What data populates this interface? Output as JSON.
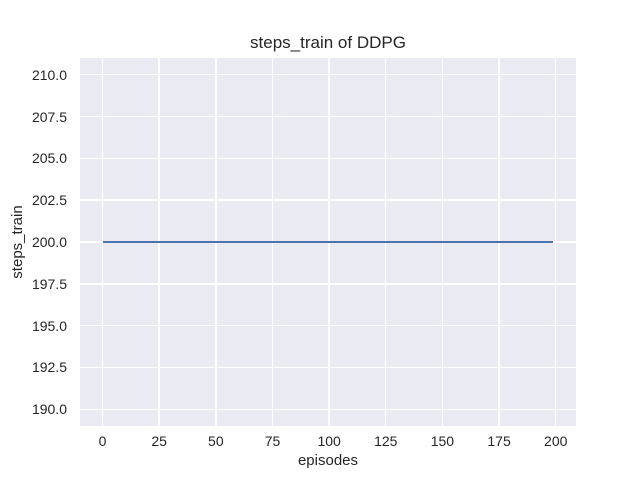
{
  "figure": {
    "title": "steps_train of DDPG",
    "xlabel": "episodes",
    "ylabel": "steps_train",
    "colors": {
      "figure_background": "#ffffff",
      "plot_background": "#eaeaf2",
      "grid": "#ffffff",
      "text": "#262626",
      "line": "#4c72b0"
    }
  },
  "chart_data": {
    "type": "line",
    "title": "steps_train of DDPG",
    "xlabel": "episodes",
    "ylabel": "steps_train",
    "grid": true,
    "legend": false,
    "xlim": [
      -9.95,
      208.95
    ],
    "ylim": [
      189,
      211
    ],
    "x_tick_values": [
      0,
      25,
      50,
      75,
      100,
      125,
      150,
      175,
      200
    ],
    "x_tick_labels": [
      "0",
      "25",
      "50",
      "75",
      "100",
      "125",
      "150",
      "175",
      "200"
    ],
    "y_tick_values": [
      190.0,
      192.5,
      195.0,
      197.5,
      200.0,
      202.5,
      205.0,
      207.5,
      210.0
    ],
    "y_tick_labels": [
      "190.0",
      "192.5",
      "195.0",
      "197.5",
      "200.0",
      "202.5",
      "205.0",
      "207.5",
      "210.0"
    ],
    "series": [
      {
        "name": "steps_train",
        "color": "#4c72b0",
        "x": [
          0,
          199
        ],
        "y": [
          200,
          200
        ]
      }
    ]
  }
}
